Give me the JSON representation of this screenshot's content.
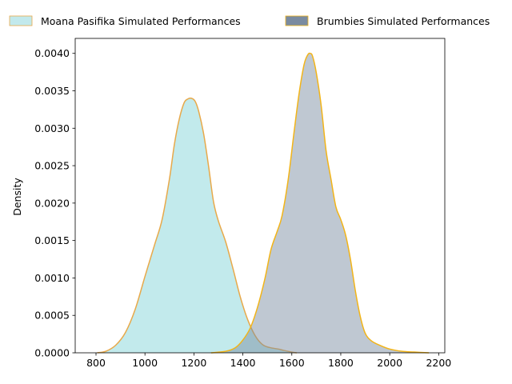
{
  "chart_data": {
    "type": "area",
    "title": "",
    "xlabel": "",
    "ylabel": "Density",
    "xlim": [
      715,
      2225
    ],
    "ylim": [
      0,
      0.0042
    ],
    "xticks": [
      800,
      1000,
      1200,
      1400,
      1600,
      1800,
      2000,
      2200
    ],
    "xtick_labels": [
      "800",
      "1000",
      "1200",
      "1400",
      "1600",
      "1800",
      "2000",
      "2200"
    ],
    "yticks": [
      0,
      0.0005,
      0.001,
      0.0015,
      0.002,
      0.0025,
      0.003,
      0.0035,
      0.004
    ],
    "ytick_labels": [
      "0.0000",
      "0.0005",
      "0.0010",
      "0.0015",
      "0.0020",
      "0.0025",
      "0.0030",
      "0.0035",
      "0.0040"
    ],
    "grid": false,
    "legend_position": "top, outside plot",
    "series": [
      {
        "name": "Moana Pasifika Simulated Performances",
        "fill_color": "#7fd3d8",
        "fill_opacity": 0.48,
        "line_color": "#e8a94a",
        "x": [
          805,
          840,
          880,
          920,
          960,
          1000,
          1040,
          1070,
          1100,
          1120,
          1140,
          1160,
          1175,
          1190,
          1205,
          1220,
          1240,
          1260,
          1280,
          1300,
          1330,
          1360,
          1390,
          1420,
          1450,
          1480,
          1510,
          1545,
          1570,
          1600,
          1620
        ],
        "y": [
          0,
          2e-05,
          0.0001,
          0.00027,
          0.00058,
          0.00102,
          0.00145,
          0.00178,
          0.00232,
          0.00278,
          0.00312,
          0.00334,
          0.00339,
          0.0034,
          0.00336,
          0.00322,
          0.00292,
          0.00249,
          0.00202,
          0.00176,
          0.00148,
          0.00112,
          0.00074,
          0.00044,
          0.00023,
          0.00011,
          7e-05,
          5e-05,
          3e-05,
          1e-05,
          0
        ]
      },
      {
        "name": "Brumbies Simulated Performances",
        "fill_color": "#7a8ba0",
        "fill_opacity": 0.48,
        "line_color": "#f2b418",
        "x": [
          1270,
          1330,
          1370,
          1400,
          1430,
          1460,
          1490,
          1515,
          1540,
          1560,
          1585,
          1610,
          1630,
          1650,
          1665,
          1675,
          1685,
          1700,
          1720,
          1740,
          1760,
          1780,
          1800,
          1820,
          1840,
          1860,
          1880,
          1900,
          1925,
          1960,
          2000,
          2050,
          2100,
          2160
        ],
        "y": [
          0,
          2e-05,
          7e-05,
          0.00017,
          0.00033,
          0.00061,
          0.00099,
          0.00138,
          0.00162,
          0.00183,
          0.00231,
          0.00297,
          0.00347,
          0.00385,
          0.00398,
          0.004,
          0.00396,
          0.00374,
          0.0033,
          0.0027,
          0.00232,
          0.00195,
          0.00178,
          0.00157,
          0.00124,
          0.00082,
          0.00048,
          0.00026,
          0.00016,
          0.0001,
          5e-05,
          2e-05,
          1e-05,
          0
        ]
      }
    ]
  }
}
